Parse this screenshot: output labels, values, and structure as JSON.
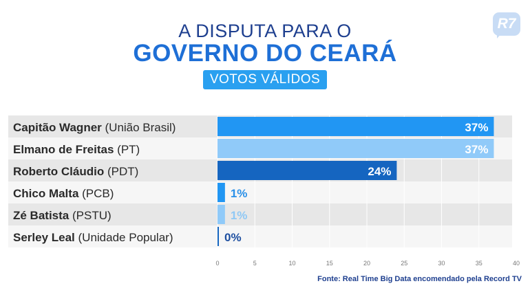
{
  "logo_text": "R7",
  "header": {
    "title_line1": "A DISPUTA PARA O",
    "title_line2": "GOVERNO DO CEARÁ",
    "subtitle": "VOTOS VÁLIDOS"
  },
  "source": "Fonte: Real Time Big Data encomendado pela Record TV",
  "colors": {
    "row_odd": "#e7e7e7",
    "row_even": "#f6f6f6",
    "text_dark": "#2a2a2a",
    "label_on_bar": "#ffffff",
    "label_outside_dark": "#1e4fa0",
    "label_outside_medium": "#2a90e8",
    "label_outside_light": "#8fc8f5"
  },
  "chart_data": {
    "type": "bar",
    "orientation": "horizontal",
    "xlim": [
      0,
      40
    ],
    "ticks": [
      0,
      5,
      10,
      15,
      20,
      25,
      30,
      35,
      40
    ],
    "grid": true,
    "bars": [
      {
        "name": "Capitão Wagner",
        "party": "(União Brasil)",
        "value": 37,
        "label": "37%",
        "color": "#2196f3"
      },
      {
        "name": "Elmano de Freitas",
        "party": "(PT)",
        "value": 37,
        "label": "37%",
        "color": "#90caf9"
      },
      {
        "name": "Roberto Cláudio",
        "party": "(PDT)",
        "value": 24,
        "label": "24%",
        "color": "#1565c0"
      },
      {
        "name": "Chico Malta",
        "party": "(PCB)",
        "value": 1,
        "label": "1%",
        "color": "#2196f3"
      },
      {
        "name": "Zé Batista",
        "party": "(PSTU)",
        "value": 1,
        "label": "1%",
        "color": "#90caf9"
      },
      {
        "name": "Serley Leal",
        "party": "(Unidade Popular)",
        "value": 0,
        "label": "0%",
        "color": "#1565c0"
      }
    ]
  }
}
